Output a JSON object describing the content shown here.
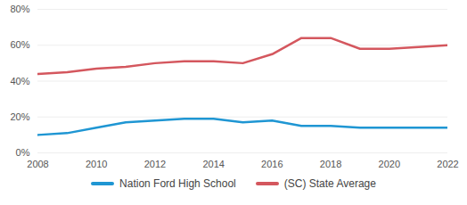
{
  "chart_data": {
    "type": "line",
    "x": [
      2008,
      2009,
      2010,
      2011,
      2012,
      2013,
      2014,
      2015,
      2016,
      2017,
      2018,
      2019,
      2020,
      2021,
      2022
    ],
    "series": [
      {
        "name": "Nation Ford High School",
        "color": "#1f96d3",
        "values": [
          10,
          11,
          14,
          17,
          18,
          19,
          19,
          17,
          18,
          15,
          15,
          14,
          14,
          14,
          14
        ]
      },
      {
        "name": "(SC) State Average",
        "color": "#d4575e",
        "values": [
          44,
          45,
          47,
          48,
          50,
          51,
          51,
          50,
          55,
          64,
          64,
          58,
          58,
          59,
          60
        ]
      }
    ],
    "xlim": [
      2008,
      2022
    ],
    "xticks": [
      2008,
      2010,
      2012,
      2014,
      2016,
      2018,
      2020,
      2022
    ],
    "ylim": [
      0,
      80
    ],
    "yticks": [
      {
        "value": 0,
        "label": "0%"
      },
      {
        "value": 20,
        "label": "20%"
      },
      {
        "value": 40,
        "label": "40%"
      },
      {
        "value": 60,
        "label": "60%"
      },
      {
        "value": 80,
        "label": "80%"
      }
    ],
    "grid": true,
    "legend": "bottom"
  }
}
